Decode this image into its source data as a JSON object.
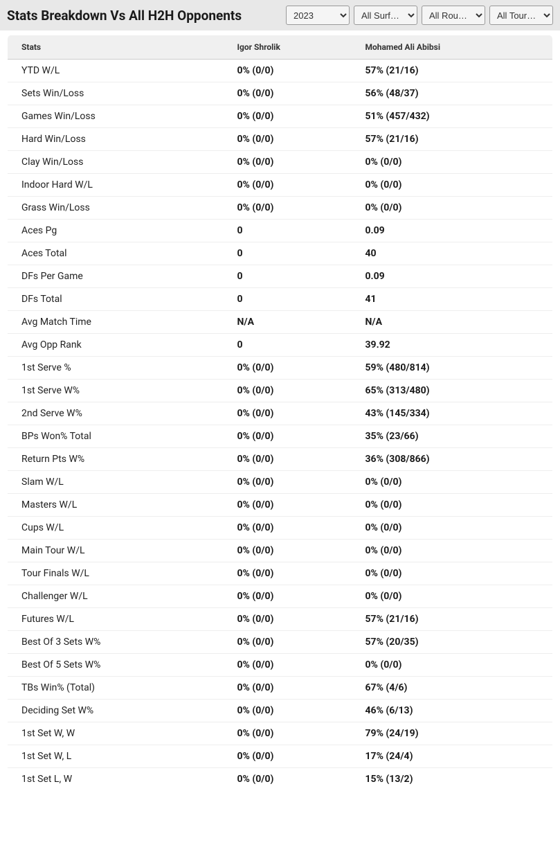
{
  "header": {
    "title": "Stats Breakdown Vs All H2H Opponents",
    "filters": {
      "year": "2023",
      "surface": "All Surf…",
      "round": "All Rou…",
      "tournament": "All Tour…"
    }
  },
  "table": {
    "columns": [
      "Stats",
      "Igor Shrolik",
      "Mohamed Ali Abibsi"
    ],
    "rows": [
      {
        "stat": "YTD W/L",
        "p1": "0% (0/0)",
        "p2": "57% (21/16)"
      },
      {
        "stat": "Sets Win/Loss",
        "p1": "0% (0/0)",
        "p2": "56% (48/37)"
      },
      {
        "stat": "Games Win/Loss",
        "p1": "0% (0/0)",
        "p2": "51% (457/432)"
      },
      {
        "stat": "Hard Win/Loss",
        "p1": "0% (0/0)",
        "p2": "57% (21/16)"
      },
      {
        "stat": "Clay Win/Loss",
        "p1": "0% (0/0)",
        "p2": "0% (0/0)"
      },
      {
        "stat": "Indoor Hard W/L",
        "p1": "0% (0/0)",
        "p2": "0% (0/0)"
      },
      {
        "stat": "Grass Win/Loss",
        "p1": "0% (0/0)",
        "p2": "0% (0/0)"
      },
      {
        "stat": "Aces Pg",
        "p1": "0",
        "p2": "0.09"
      },
      {
        "stat": "Aces Total",
        "p1": "0",
        "p2": "40"
      },
      {
        "stat": "DFs Per Game",
        "p1": "0",
        "p2": "0.09"
      },
      {
        "stat": "DFs Total",
        "p1": "0",
        "p2": "41"
      },
      {
        "stat": "Avg Match Time",
        "p1": "N/A",
        "p2": "N/A"
      },
      {
        "stat": "Avg Opp Rank",
        "p1": "0",
        "p2": "39.92"
      },
      {
        "stat": "1st Serve %",
        "p1": "0% (0/0)",
        "p2": "59% (480/814)"
      },
      {
        "stat": "1st Serve W%",
        "p1": "0% (0/0)",
        "p2": "65% (313/480)"
      },
      {
        "stat": "2nd Serve W%",
        "p1": "0% (0/0)",
        "p2": "43% (145/334)"
      },
      {
        "stat": "BPs Won% Total",
        "p1": "0% (0/0)",
        "p2": "35% (23/66)"
      },
      {
        "stat": "Return Pts W%",
        "p1": "0% (0/0)",
        "p2": "36% (308/866)"
      },
      {
        "stat": "Slam W/L",
        "p1": "0% (0/0)",
        "p2": "0% (0/0)"
      },
      {
        "stat": "Masters W/L",
        "p1": "0% (0/0)",
        "p2": "0% (0/0)"
      },
      {
        "stat": "Cups W/L",
        "p1": "0% (0/0)",
        "p2": "0% (0/0)"
      },
      {
        "stat": "Main Tour W/L",
        "p1": "0% (0/0)",
        "p2": "0% (0/0)"
      },
      {
        "stat": "Tour Finals W/L",
        "p1": "0% (0/0)",
        "p2": "0% (0/0)"
      },
      {
        "stat": "Challenger W/L",
        "p1": "0% (0/0)",
        "p2": "0% (0/0)"
      },
      {
        "stat": "Futures W/L",
        "p1": "0% (0/0)",
        "p2": "57% (21/16)"
      },
      {
        "stat": "Best Of 3 Sets W%",
        "p1": "0% (0/0)",
        "p2": "57% (20/35)"
      },
      {
        "stat": "Best Of 5 Sets W%",
        "p1": "0% (0/0)",
        "p2": "0% (0/0)"
      },
      {
        "stat": "TBs Win% (Total)",
        "p1": "0% (0/0)",
        "p2": "67% (4/6)"
      },
      {
        "stat": "Deciding Set W%",
        "p1": "0% (0/0)",
        "p2": "46% (6/13)"
      },
      {
        "stat": "1st Set W, W",
        "p1": "0% (0/0)",
        "p2": "79% (24/19)"
      },
      {
        "stat": "1st Set W, L",
        "p1": "0% (0/0)",
        "p2": "17% (24/4)"
      },
      {
        "stat": "1st Set L, W",
        "p1": "0% (0/0)",
        "p2": "15% (13/2)"
      }
    ]
  },
  "styling": {
    "header_bg": "#e8e8e8",
    "table_border": "#bbb",
    "thead_bg": "#f0f0f0",
    "row_border": "#eee",
    "title_fontsize": 19,
    "th_fontsize": 12,
    "td_fontsize": 14
  }
}
